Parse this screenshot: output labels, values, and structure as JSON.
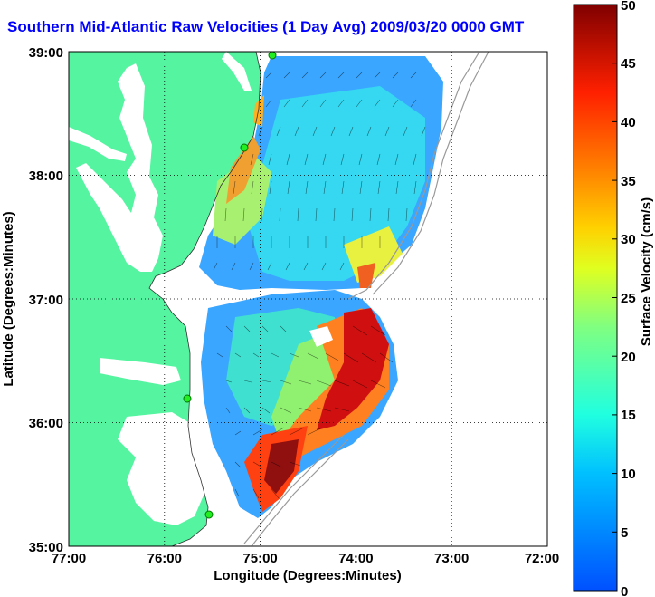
{
  "title": "Southern Mid-Atlantic Raw Velocities (1 Day Avg) 2009/03/20 0000 GMT",
  "xlabel": "Longitude (Degrees:Minutes)",
  "ylabel": "Latitude (Degrees:Minutes)",
  "x_ticks": [
    "77:00",
    "76:00",
    "75:00",
    "74:00",
    "73:00",
    "72:00"
  ],
  "y_ticks": [
    "39:00",
    "38:00",
    "37:00",
    "36:00",
    "35:00"
  ],
  "colorbar": {
    "label": "Surface Velocity (cm/s)",
    "ticks": [
      "0",
      "5",
      "10",
      "15",
      "20",
      "25",
      "30",
      "35",
      "40",
      "45",
      "50"
    ],
    "range": [
      0,
      50
    ]
  },
  "colors": {
    "land": "#55f4a0",
    "title": "#0000ff",
    "grid": "#000000"
  },
  "stations": [
    "station-cape-may",
    "station-fenwick",
    "station-cape-hatteras-n",
    "station-cape-hatteras-s"
  ],
  "chart_data": {
    "type": "heatmap",
    "xlim": [
      -77,
      -72
    ],
    "ylim": [
      35,
      39
    ],
    "grid": true
  }
}
